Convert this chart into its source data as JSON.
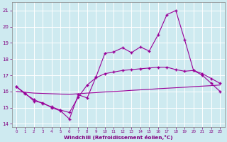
{
  "xlabel": "Windchill (Refroidissement éolien,°C)",
  "bg_color": "#ceeaf0",
  "line_color": "#990099",
  "grid_color": "#b0d8e0",
  "ylim": [
    13.8,
    21.5
  ],
  "xlim": [
    -0.5,
    23.5
  ],
  "yticks": [
    14,
    15,
    16,
    17,
    18,
    19,
    20,
    21
  ],
  "xticks": [
    0,
    1,
    2,
    3,
    4,
    5,
    6,
    7,
    8,
    9,
    10,
    11,
    12,
    13,
    14,
    15,
    16,
    17,
    18,
    19,
    20,
    21,
    22,
    23
  ],
  "line1_x": [
    0,
    1,
    2,
    3,
    4,
    5,
    6,
    7,
    8,
    9,
    10,
    11,
    12,
    13,
    14,
    15,
    16,
    17,
    18,
    19,
    20,
    21,
    22,
    23
  ],
  "line1_y": [
    16.3,
    15.9,
    15.4,
    15.3,
    15.0,
    14.8,
    14.3,
    15.8,
    15.6,
    16.9,
    18.35,
    18.45,
    18.7,
    18.4,
    18.75,
    18.5,
    19.5,
    20.75,
    21.0,
    19.2,
    17.3,
    17.0,
    16.5,
    16.0
  ],
  "line2_x": [
    0,
    1,
    2,
    3,
    4,
    5,
    6,
    7,
    8,
    9,
    10,
    11,
    12,
    13,
    14,
    15,
    16,
    17,
    18,
    19,
    20,
    21,
    22,
    23
  ],
  "line2_y": [
    16.3,
    15.85,
    15.5,
    15.25,
    15.05,
    14.85,
    14.7,
    15.65,
    16.4,
    16.85,
    17.1,
    17.2,
    17.3,
    17.35,
    17.4,
    17.45,
    17.5,
    17.5,
    17.35,
    17.25,
    17.3,
    17.1,
    16.8,
    16.5
  ],
  "line3_x": [
    0,
    1,
    2,
    3,
    4,
    5,
    6,
    7,
    8,
    9,
    10,
    11,
    12,
    13,
    14,
    15,
    16,
    17,
    18,
    19,
    20,
    21,
    22,
    23
  ],
  "line3_y": [
    16.0,
    15.95,
    15.9,
    15.88,
    15.86,
    15.84,
    15.82,
    15.86,
    15.9,
    15.93,
    15.97,
    16.0,
    16.03,
    16.07,
    16.1,
    16.13,
    16.17,
    16.2,
    16.23,
    16.26,
    16.3,
    16.33,
    16.36,
    16.4
  ]
}
